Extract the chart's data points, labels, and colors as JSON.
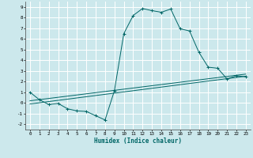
{
  "xlabel": "Humidex (Indice chaleur)",
  "background_color": "#cce8ec",
  "grid_color": "#ffffff",
  "line_color": "#006666",
  "xlim": [
    -0.5,
    23.5
  ],
  "ylim": [
    -2.5,
    9.5
  ],
  "xticks": [
    0,
    1,
    2,
    3,
    4,
    5,
    6,
    7,
    8,
    9,
    10,
    11,
    12,
    13,
    14,
    15,
    16,
    17,
    18,
    19,
    20,
    21,
    22,
    23
  ],
  "yticks": [
    -2,
    -1,
    0,
    1,
    2,
    3,
    4,
    5,
    6,
    7,
    8,
    9
  ],
  "curve1_x": [
    0,
    1,
    2,
    3,
    4,
    5,
    6,
    7,
    8,
    9,
    10,
    11,
    12,
    13,
    14,
    15,
    16,
    17,
    18,
    19,
    20,
    21,
    22,
    23
  ],
  "curve1_y": [
    1.0,
    0.3,
    -0.15,
    -0.05,
    -0.55,
    -0.75,
    -0.8,
    -1.2,
    -1.6,
    1.15,
    6.5,
    8.2,
    8.85,
    8.65,
    8.5,
    8.8,
    6.95,
    6.75,
    4.75,
    3.35,
    3.25,
    2.25,
    2.55,
    2.45
  ],
  "curve2_x": [
    0,
    23
  ],
  "curve2_y": [
    -0.1,
    2.5
  ],
  "curve3_x": [
    0,
    23
  ],
  "curve3_y": [
    0.2,
    2.7
  ]
}
